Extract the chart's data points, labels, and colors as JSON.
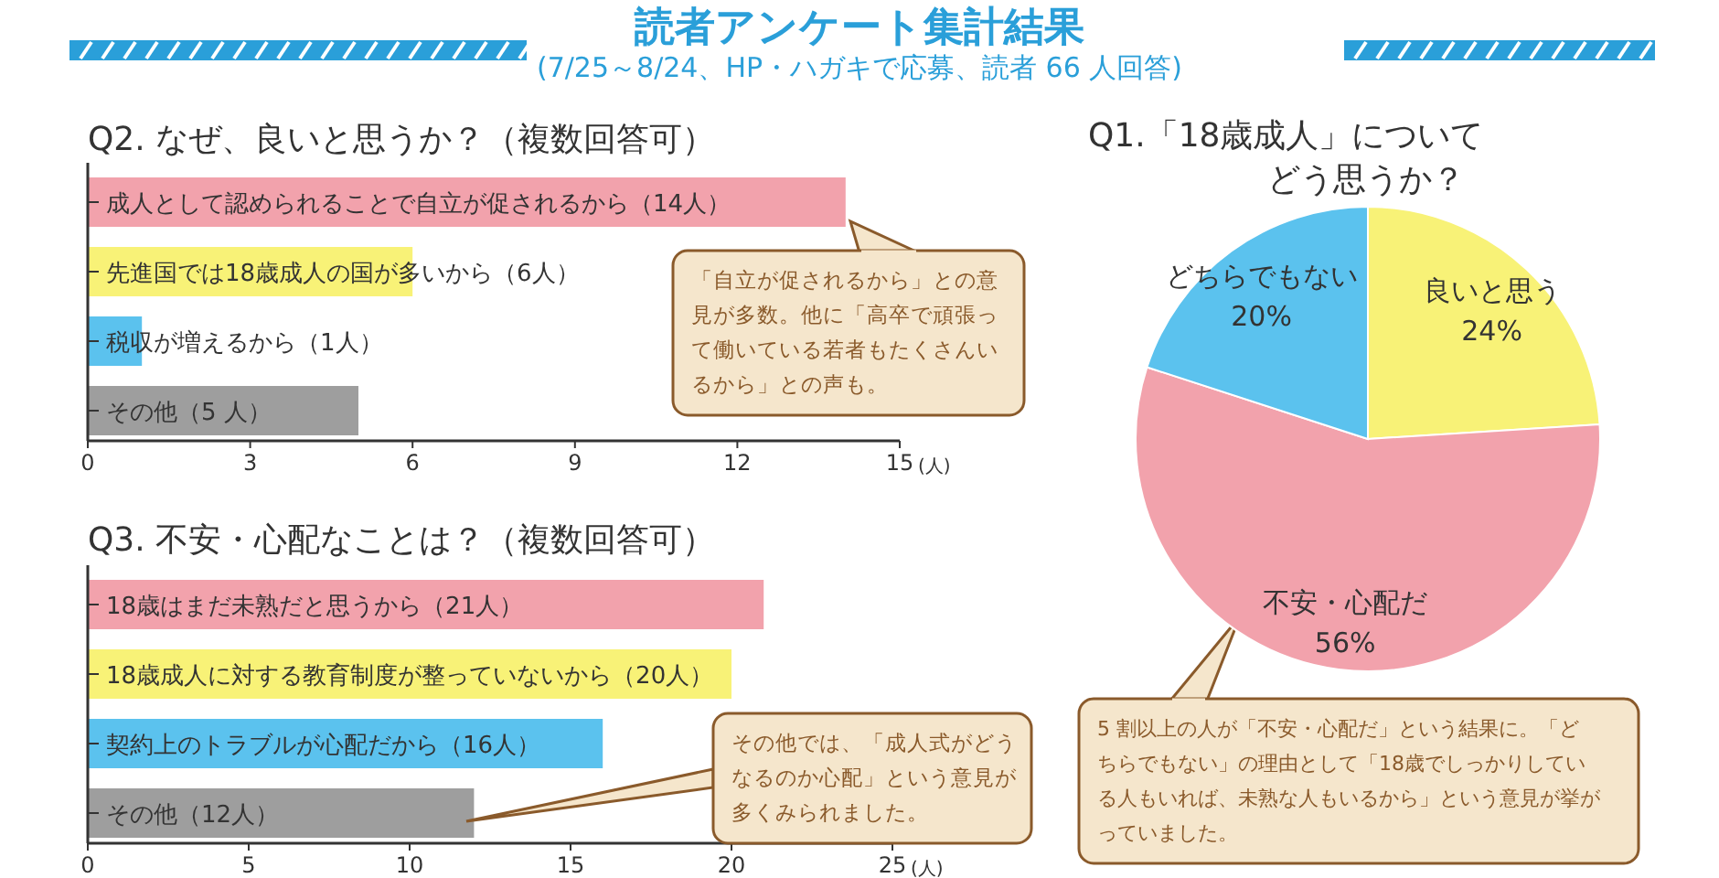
{
  "chart_data": [
    {
      "type": "other",
      "title": "読者アンケート集計結果",
      "subtitle": "(7/25～8/24、HP・ハガキで応募、読者 66 人回答)"
    },
    {
      "type": "bar",
      "orientation": "horizontal",
      "title": "Q2. なぜ、良いと思うか？（複数回答可）",
      "xlabel": "(人)",
      "categories": [
        "成人として認められることで自立が促されるから（14人）",
        "先進国では18歳成人の国が多いから（6人）",
        "税収が増えるから（1人）",
        "その他（5 人）"
      ],
      "values": [
        14,
        6,
        1,
        5
      ],
      "colors": [
        "#f2a2ac",
        "#f8f277",
        "#5bc2ee",
        "#9e9e9e"
      ],
      "xlim": [
        0,
        15
      ],
      "xticks": [
        0,
        3,
        6,
        9,
        12,
        15
      ],
      "annotations": [
        "「自立が促されるから」との意見が多数。他に「高卒で頑張って働いている若者もたくさんいるから」との声も。"
      ]
    },
    {
      "type": "pie",
      "title": "Q1.「18歳成人」についてどう思うか？",
      "categories": [
        "良いと思う",
        "不安・心配だ",
        "どちらでもない"
      ],
      "values": [
        24,
        56,
        20
      ],
      "value_labels": [
        "24%",
        "56%",
        "20%"
      ],
      "colors": [
        "#f8f277",
        "#f2a2ac",
        "#5bc2ee"
      ],
      "annotations": [
        "5 割以上の人が「不安・心配だ」という結果に。「どちらでもない」の理由として「18歳でしっかりしている人もいれば、未熟な人もいるから」という意見が挙がっていました。"
      ]
    },
    {
      "type": "bar",
      "orientation": "horizontal",
      "title": "Q3. 不安・心配なことは？（複数回答可）",
      "xlabel": "(人)",
      "categories": [
        "18歳はまだ未熟だと思うから（21人）",
        "18歳成人に対する教育制度が整っていないから（20人）",
        "契約上のトラブルが心配だから（16人）",
        "その他（12人）"
      ],
      "values": [
        21,
        20,
        16,
        12
      ],
      "colors": [
        "#f2a2ac",
        "#f8f277",
        "#5bc2ee",
        "#9e9e9e"
      ],
      "xlim": [
        0,
        25
      ],
      "xticks": [
        0,
        5,
        10,
        15,
        20,
        25
      ],
      "annotations": [
        "その他では、「成人式がどうなるのか心配」という意見が多くみられました。"
      ]
    }
  ]
}
